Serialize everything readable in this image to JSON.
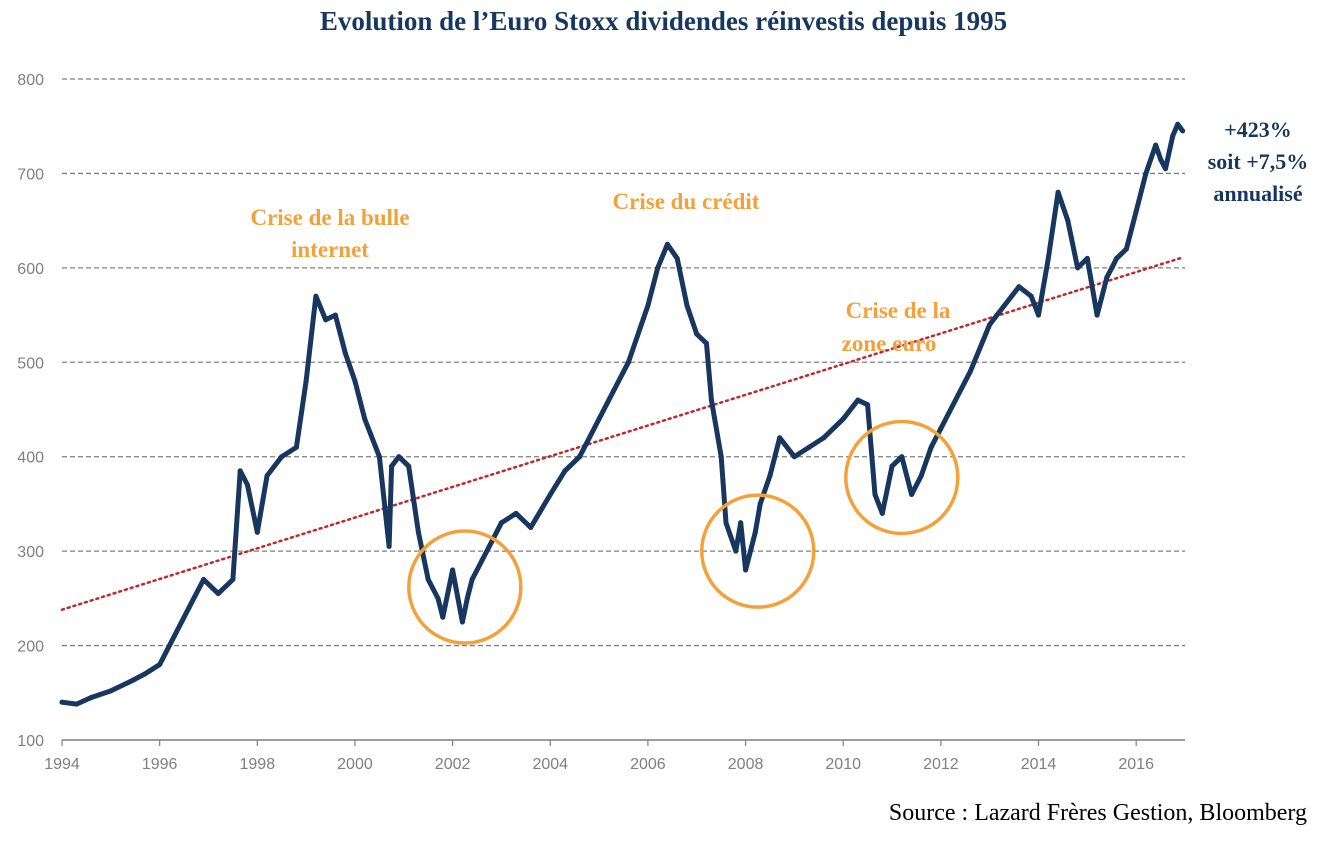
{
  "chart_data": {
    "type": "line",
    "title": "Evolution de l’Euro Stoxx dividendes réinvestis depuis 1995",
    "xlabel": "",
    "ylabel": "",
    "xlim": [
      1994,
      2017
    ],
    "ylim": [
      100,
      800
    ],
    "x_ticks": [
      "1994",
      "1996",
      "1998",
      "2000",
      "2002",
      "2004",
      "2006",
      "2008",
      "2010",
      "2012",
      "2014",
      "2016"
    ],
    "y_ticks": [
      "100",
      "200",
      "300",
      "400",
      "500",
      "600",
      "700",
      "800"
    ],
    "grid": "horizontal dashed",
    "series": [
      {
        "color": "#17375e",
        "x": [
          1994.0,
          1994.3,
          1994.6,
          1995.0,
          1995.4,
          1995.7,
          1996.0,
          1996.3,
          1996.6,
          1996.9,
          1997.2,
          1997.5,
          1997.65,
          1997.8,
          1998.0,
          1998.2,
          1998.5,
          1998.8,
          1999.0,
          1999.2,
          1999.4,
          1999.6,
          1999.8,
          2000.0,
          2000.2,
          2000.5,
          2000.7,
          2000.75,
          2000.9,
          2001.1,
          2001.3,
          2001.5,
          2001.7,
          2001.8,
          2002.0,
          2002.2,
          2002.3,
          2002.4,
          2002.6,
          2002.8,
          2003.0,
          2003.3,
          2003.6,
          2004.0,
          2004.3,
          2004.6,
          2005.0,
          2005.3,
          2005.6,
          2006.0,
          2006.2,
          2006.4,
          2006.6,
          2006.8,
          2007.0,
          2007.2,
          2007.3,
          2007.5,
          2007.6,
          2007.8,
          2007.9,
          2008.0,
          2008.2,
          2008.3,
          2008.5,
          2008.7,
          2009.0,
          2009.3,
          2009.6,
          2010.0,
          2010.3,
          2010.5,
          2010.65,
          2010.8,
          2011.0,
          2011.2,
          2011.4,
          2011.6,
          2011.8,
          2012.0,
          2012.3,
          2012.6,
          2013.0,
          2013.3,
          2013.6,
          2013.85,
          2014.0,
          2014.2,
          2014.4,
          2014.6,
          2014.8,
          2015.0,
          2015.2,
          2015.4,
          2015.5,
          2015.6,
          2015.8,
          2016.0,
          2016.2,
          2016.4,
          2016.5,
          2016.6,
          2016.75,
          2016.85,
          2016.95
        ],
        "values": [
          140,
          138,
          145,
          152,
          162,
          170,
          180,
          210,
          240,
          270,
          255,
          270,
          385,
          370,
          320,
          380,
          400,
          410,
          480,
          570,
          545,
          550,
          510,
          480,
          440,
          400,
          305,
          390,
          400,
          390,
          320,
          270,
          250,
          230,
          280,
          225,
          250,
          270,
          290,
          310,
          330,
          340,
          325,
          360,
          385,
          400,
          440,
          470,
          500,
          560,
          600,
          625,
          610,
          560,
          530,
          520,
          460,
          400,
          330,
          300,
          330,
          280,
          320,
          350,
          380,
          420,
          400,
          410,
          420,
          440,
          460,
          455,
          360,
          340,
          390,
          400,
          360,
          380,
          410,
          430,
          460,
          490,
          540,
          560,
          580,
          570,
          550,
          610,
          680,
          650,
          600,
          610,
          550,
          590,
          600,
          610,
          620,
          660,
          700,
          730,
          715,
          705,
          740,
          752,
          745
        ]
      }
    ],
    "trendline": {
      "color": "#c0282d",
      "style": "dotted",
      "x": [
        1994,
        2016.95
      ],
      "values": [
        238,
        611
      ]
    },
    "highlight_circles": [
      {
        "x": 2002.25,
        "y": 262
      },
      {
        "x": 2008.25,
        "y": 300
      },
      {
        "x": 2011.2,
        "y": 378
      }
    ]
  },
  "annotations": {
    "bubble_line1": "Crise de la bulle",
    "bubble_line2": "internet",
    "credit": "Crise du crédit",
    "euro_line1": "Crise de la",
    "euro_line2": "zone euro",
    "perf_line1": "+423%",
    "perf_line2": "soit +7,5%",
    "perf_line3": "annualisé"
  },
  "source": "Source : Lazard Frères Gestion, Bloomberg",
  "colors": {
    "line": "#17375e",
    "trend": "#c0282d",
    "circle": "#f4a13c",
    "annotation_orange": "#f4a13c",
    "annotation_blue": "#17375e",
    "grid": "#7f7f7f"
  }
}
